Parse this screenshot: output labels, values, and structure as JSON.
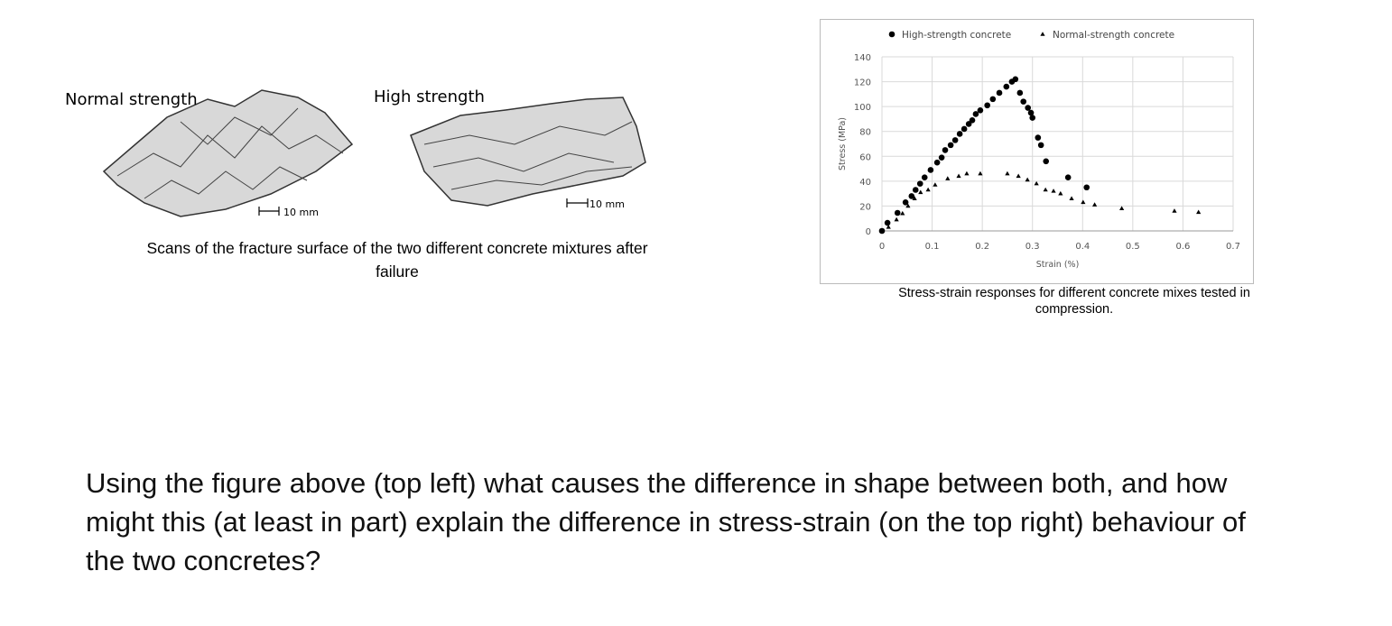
{
  "left_figure": {
    "label_normal": "Normal strength",
    "label_high": "High strength",
    "scale_normal": "10 mm",
    "scale_high": "10 mm",
    "caption": "Scans of the fracture surface of the two different concrete mixtures after failure"
  },
  "chart_data": {
    "type": "scatter",
    "x_label": "Strain (%)",
    "y_label": "Stress (MPa)",
    "xlim": [
      0,
      0.7
    ],
    "ylim": [
      0,
      140
    ],
    "xticks": [
      0,
      0.1,
      0.2,
      0.3,
      0.4,
      0.5,
      0.6,
      0.7
    ],
    "yticks": [
      0,
      20,
      40,
      60,
      80,
      100,
      120,
      140
    ],
    "grid": true,
    "legend": "top",
    "caption": "Stress-strain responses for different concrete mixes tested in compression.",
    "series": [
      {
        "name": "High-strength concrete",
        "marker": "circle",
        "color": "#000000",
        "x": [
          0,
          0.011,
          0.031,
          0.047,
          0.059,
          0.067,
          0.076,
          0.085,
          0.097,
          0.11,
          0.119,
          0.126,
          0.137,
          0.146,
          0.155,
          0.164,
          0.173,
          0.18,
          0.187,
          0.196,
          0.21,
          0.221,
          0.234,
          0.248,
          0.259,
          0.266,
          0.275,
          0.282,
          0.291,
          0.297,
          0.3,
          0.311,
          0.317,
          0.327,
          0.371,
          0.408
        ],
        "values": [
          0,
          6.5,
          14.5,
          23,
          28,
          33,
          38,
          43,
          49,
          55,
          59,
          65,
          69,
          73,
          78,
          82,
          86,
          89,
          94,
          97,
          101,
          106,
          111,
          116,
          120,
          122,
          111,
          104,
          99,
          95,
          91,
          75,
          69,
          56,
          43,
          35
        ]
      },
      {
        "name": "Normal-strength concrete",
        "marker": "triangle",
        "color": "#000000",
        "x": [
          0.013,
          0.029,
          0.041,
          0.052,
          0.065,
          0.077,
          0.092,
          0.106,
          0.131,
          0.153,
          0.169,
          0.196,
          0.25,
          0.272,
          0.29,
          0.308,
          0.326,
          0.342,
          0.356,
          0.378,
          0.401,
          0.424,
          0.478,
          0.583,
          0.631
        ],
        "values": [
          3,
          9,
          14,
          20,
          26,
          31,
          33,
          37,
          42,
          44,
          46,
          46,
          46,
          44,
          41,
          38,
          33,
          32,
          30,
          26,
          23,
          21,
          18,
          16,
          15
        ]
      }
    ]
  },
  "question": "Using the figure above (top left) what causes the difference in shape between both, and how might this (at least in part) explain the difference in stress-strain (on the top right) behaviour of the two concretes?"
}
